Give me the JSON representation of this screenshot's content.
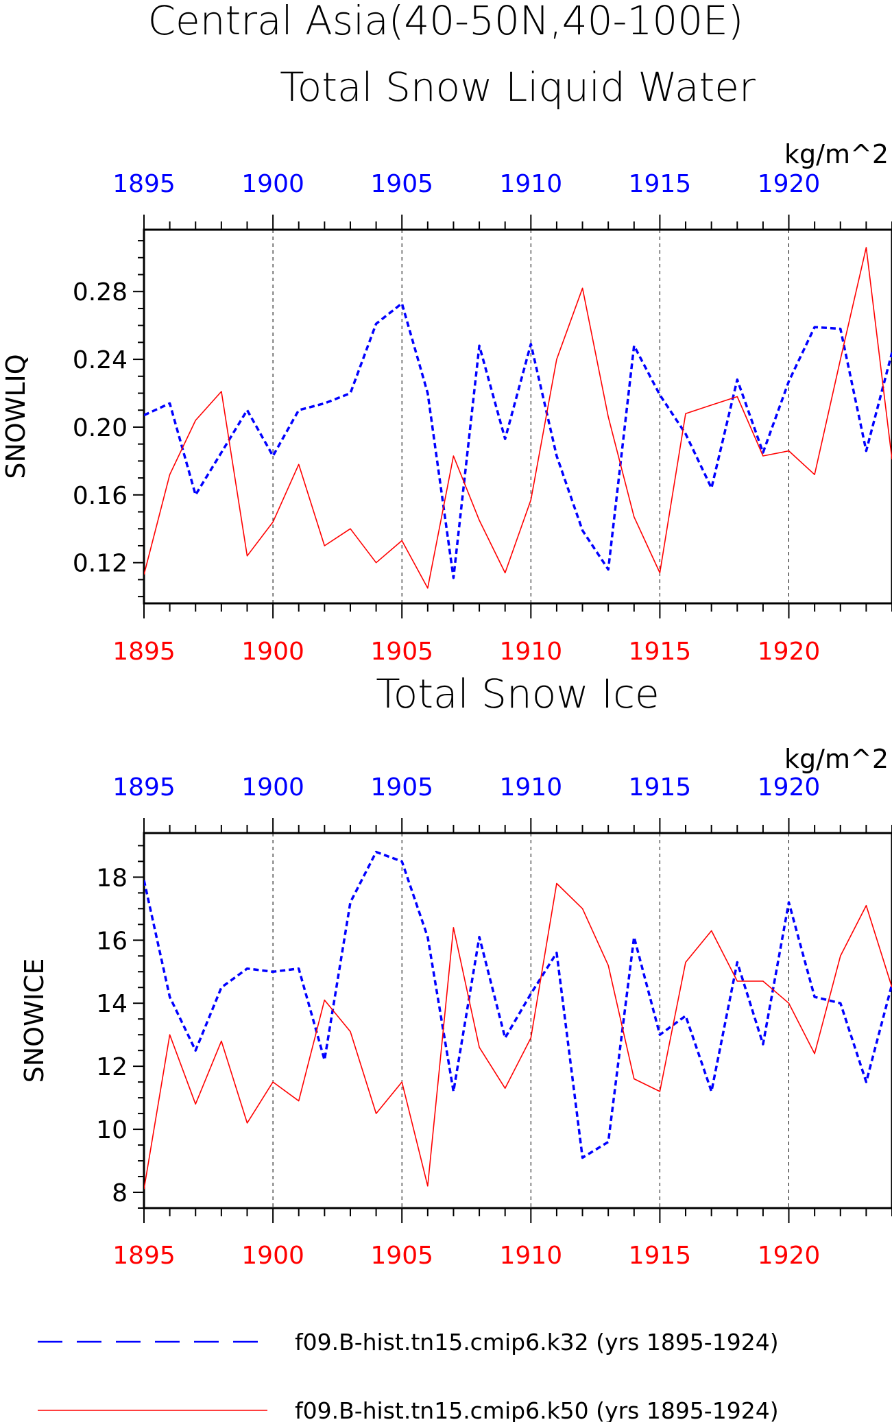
{
  "header": {
    "title_line1": "Central Asia(40-50N,40-100E)",
    "title_line2": "Total Snow Liquid Water"
  },
  "colors": {
    "blue": "#0000ff",
    "red": "#ff0000",
    "grid": "#000000"
  },
  "chart_data": [
    {
      "type": "line",
      "title": "Total Snow Liquid Water",
      "ylabel": "SNOWLIQ",
      "units": "kg/m^2",
      "xlim": [
        1895,
        1924
      ],
      "ylim": [
        0.096,
        0.3165
      ],
      "yticks": [
        0.12,
        0.16,
        0.2,
        0.24,
        0.28
      ],
      "ytick_labels": [
        "0.12",
        "0.16",
        "0.20",
        "0.24",
        "0.28"
      ],
      "yminor_step": 0.01,
      "xticks": [
        1895,
        1900,
        1905,
        1910,
        1915,
        1920
      ],
      "x_vlines": [
        1900,
        1905,
        1910,
        1915,
        1920
      ],
      "x": [
        1895,
        1896,
        1897,
        1898,
        1899,
        1900,
        1901,
        1902,
        1903,
        1904,
        1905,
        1906,
        1907,
        1908,
        1909,
        1910,
        1911,
        1912,
        1913,
        1914,
        1915,
        1916,
        1917,
        1918,
        1919,
        1920,
        1921,
        1922,
        1923,
        1924
      ],
      "series": [
        {
          "name": "f09.B-hist.tn15.cmip6.k32 (yrs 1895-1924)",
          "color": "#0000ff",
          "style": "dashed",
          "axis": "top",
          "values": [
            0.207,
            0.214,
            0.16,
            0.185,
            0.21,
            0.183,
            0.21,
            0.214,
            0.22,
            0.261,
            0.273,
            0.22,
            0.111,
            0.248,
            0.193,
            0.249,
            0.183,
            0.139,
            0.116,
            0.248,
            0.219,
            0.196,
            0.164,
            0.228,
            0.185,
            0.227,
            0.259,
            0.258,
            0.186,
            0.244
          ]
        },
        {
          "name": "f09.B-hist.tn15.cmip6.k50 (yrs 1895-1924)",
          "color": "#ff0000",
          "style": "solid",
          "axis": "bottom",
          "values": [
            0.113,
            0.172,
            0.204,
            0.221,
            0.124,
            0.144,
            0.178,
            0.13,
            0.14,
            0.12,
            0.133,
            0.105,
            0.183,
            0.145,
            0.114,
            0.157,
            0.24,
            0.282,
            0.206,
            0.147,
            0.114,
            0.208,
            0.213,
            0.218,
            0.183,
            0.186,
            0.172,
            0.24,
            0.306,
            0.181
          ]
        }
      ]
    },
    {
      "type": "line",
      "title": "Total Snow Ice",
      "ylabel": "SNOWICE",
      "units": "kg/m^2",
      "xlim": [
        1895,
        1924
      ],
      "ylim": [
        7.5,
        19.4
      ],
      "yticks": [
        8,
        10,
        12,
        14,
        16,
        18
      ],
      "ytick_labels": [
        "8",
        "10",
        "12",
        "14",
        "16",
        "18"
      ],
      "yminor_step": 0.5,
      "xticks": [
        1895,
        1900,
        1905,
        1910,
        1915,
        1920
      ],
      "x_vlines": [
        1900,
        1905,
        1910,
        1915,
        1920
      ],
      "x": [
        1895,
        1896,
        1897,
        1898,
        1899,
        1900,
        1901,
        1902,
        1903,
        1904,
        1905,
        1906,
        1907,
        1908,
        1909,
        1910,
        1911,
        1912,
        1913,
        1914,
        1915,
        1916,
        1917,
        1918,
        1919,
        1920,
        1921,
        1922,
        1923,
        1924
      ],
      "series": [
        {
          "name": "f09.B-hist.tn15.cmip6.k32 (yrs 1895-1924)",
          "color": "#0000ff",
          "style": "dashed",
          "axis": "top",
          "values": [
            17.9,
            14.2,
            12.5,
            14.5,
            15.1,
            15.0,
            15.1,
            12.2,
            17.2,
            18.8,
            18.5,
            16.1,
            11.2,
            16.1,
            12.9,
            14.3,
            15.6,
            9.1,
            9.6,
            16.1,
            13.0,
            13.6,
            11.2,
            15.3,
            12.7,
            17.2,
            14.2,
            14.0,
            11.5,
            14.6
          ]
        },
        {
          "name": "f09.B-hist.tn15.cmip6.k50 (yrs 1895-1924)",
          "color": "#ff0000",
          "style": "solid",
          "axis": "bottom",
          "values": [
            8.1,
            13.0,
            10.8,
            12.8,
            10.2,
            11.5,
            10.9,
            14.1,
            13.1,
            10.5,
            11.5,
            8.2,
            16.4,
            12.6,
            11.3,
            12.9,
            17.8,
            17.0,
            15.2,
            11.6,
            11.2,
            15.3,
            16.3,
            14.7,
            14.7,
            14.0,
            12.4,
            15.5,
            17.1,
            14.5
          ]
        }
      ]
    }
  ],
  "legend": [
    {
      "label": "f09.B-hist.tn15.cmip6.k32 (yrs 1895-1924)",
      "color": "#0000ff",
      "style": "dashed"
    },
    {
      "label": "f09.B-hist.tn15.cmip6.k50 (yrs 1895-1924)",
      "color": "#ff0000",
      "style": "solid"
    }
  ]
}
